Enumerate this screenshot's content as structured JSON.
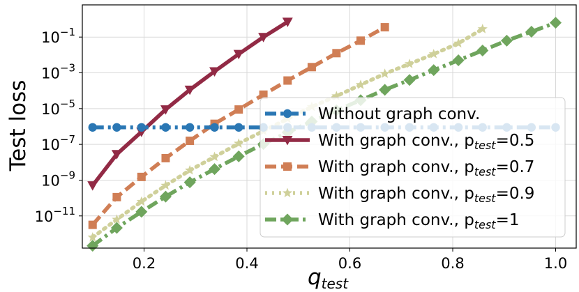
{
  "chart_data": {
    "type": "line",
    "title": "",
    "xlabel_main": "q",
    "xlabel_sub": "test",
    "ylabel": "Test loss",
    "xlim": [
      0.08,
      1.04
    ],
    "ylim_log10": [
      -12.8,
      0.8
    ],
    "yscale": "log",
    "grid": true,
    "legend_position": "lower-right",
    "x_ticks": [
      {
        "value": 0.2,
        "label": "0.2"
      },
      {
        "value": 0.4,
        "label": "0.4"
      },
      {
        "value": 0.6,
        "label": "0.6"
      },
      {
        "value": 0.8,
        "label": "0.8"
      },
      {
        "value": 1.0,
        "label": "1.0"
      }
    ],
    "y_ticks": [
      {
        "exp": -1,
        "base": "10",
        "sup": "−1"
      },
      {
        "exp": -3,
        "base": "10",
        "sup": "−3"
      },
      {
        "exp": -5,
        "base": "10",
        "sup": "−5"
      },
      {
        "exp": -7,
        "base": "10",
        "sup": "−7"
      },
      {
        "exp": -9,
        "base": "10",
        "sup": "−9"
      },
      {
        "exp": -11,
        "base": "10",
        "sup": "−11"
      }
    ],
    "series": [
      {
        "name": "Without graph conv.",
        "legend_prefix": "Without graph conv.",
        "legend_sub": "",
        "legend_suffix": "",
        "color": "#2a77b4",
        "dash": "dashdot",
        "marker": "circle",
        "x": [
          0.1,
          0.147,
          0.195,
          0.242,
          0.289,
          0.337,
          0.384,
          0.432,
          0.479,
          0.526,
          0.574,
          0.621,
          0.668,
          0.716,
          0.763,
          0.811,
          0.858,
          0.905,
          0.953,
          1.0
        ],
        "log10y": [
          -6.05,
          -6.05,
          -6.05,
          -6.05,
          -6.05,
          -6.05,
          -6.05,
          -6.05,
          -6.05,
          -6.05,
          -6.05,
          -6.05,
          -6.05,
          -6.05,
          -6.05,
          -6.05,
          -6.05,
          -6.05,
          -6.05,
          -6.05
        ]
      },
      {
        "name": "With graph conv., p_test=0.5",
        "legend_prefix": "With graph conv., p",
        "legend_sub": "test",
        "legend_suffix": "=0.5",
        "color": "#922a45",
        "dash": "solid",
        "marker": "triangle-down",
        "x": [
          0.1,
          0.147,
          0.195,
          0.242,
          0.289,
          0.337,
          0.384,
          0.432,
          0.479
        ],
        "log10y": [
          -9.3,
          -7.55,
          -6.3,
          -5.05,
          -3.95,
          -2.92,
          -1.95,
          -1.0,
          -0.15
        ]
      },
      {
        "name": "With graph conv., p_test=0.7",
        "legend_prefix": "With graph conv., p",
        "legend_sub": "test",
        "legend_suffix": "=0.7",
        "color": "#d07e55",
        "dash": "dash",
        "marker": "square",
        "x": [
          0.1,
          0.147,
          0.195,
          0.242,
          0.289,
          0.337,
          0.384,
          0.432,
          0.479,
          0.526,
          0.574,
          0.621,
          0.668
        ],
        "log10y": [
          -11.5,
          -9.95,
          -8.82,
          -7.77,
          -6.8,
          -5.85,
          -5.05,
          -4.22,
          -3.43,
          -2.68,
          -1.9,
          -1.2,
          -0.45
        ]
      },
      {
        "name": "With graph conv., p_test=0.9",
        "legend_prefix": "With graph conv., p",
        "legend_sub": "test",
        "legend_suffix": "=0.9",
        "color": "#cfd09a",
        "dash": "dot",
        "marker": "star",
        "x": [
          0.1,
          0.147,
          0.195,
          0.242,
          0.289,
          0.337,
          0.384,
          0.432,
          0.479,
          0.526,
          0.574,
          0.621,
          0.668,
          0.716,
          0.763,
          0.811,
          0.858
        ],
        "log10y": [
          -12.2,
          -11.2,
          -10.2,
          -9.3,
          -8.45,
          -7.7,
          -6.95,
          -6.25,
          -5.57,
          -4.9,
          -4.3,
          -3.67,
          -3.05,
          -2.5,
          -1.95,
          -1.35,
          -0.55
        ]
      },
      {
        "name": "With graph conv., p_test=1",
        "legend_prefix": "With graph conv., p",
        "legend_sub": "test",
        "legend_suffix": "=1",
        "color": "#6fa55d",
        "dash": "dashdot",
        "marker": "diamond",
        "x": [
          0.1,
          0.147,
          0.195,
          0.242,
          0.289,
          0.337,
          0.384,
          0.432,
          0.479,
          0.526,
          0.574,
          0.621,
          0.668,
          0.716,
          0.763,
          0.811,
          0.858,
          0.905,
          0.953,
          1.0
        ],
        "log10y": [
          -12.67,
          -11.67,
          -10.77,
          -9.92,
          -9.12,
          -8.38,
          -7.67,
          -6.98,
          -6.33,
          -5.72,
          -5.1,
          -4.53,
          -3.95,
          -3.4,
          -2.85,
          -2.3,
          -1.75,
          -1.2,
          -0.7,
          -0.2
        ]
      }
    ]
  }
}
